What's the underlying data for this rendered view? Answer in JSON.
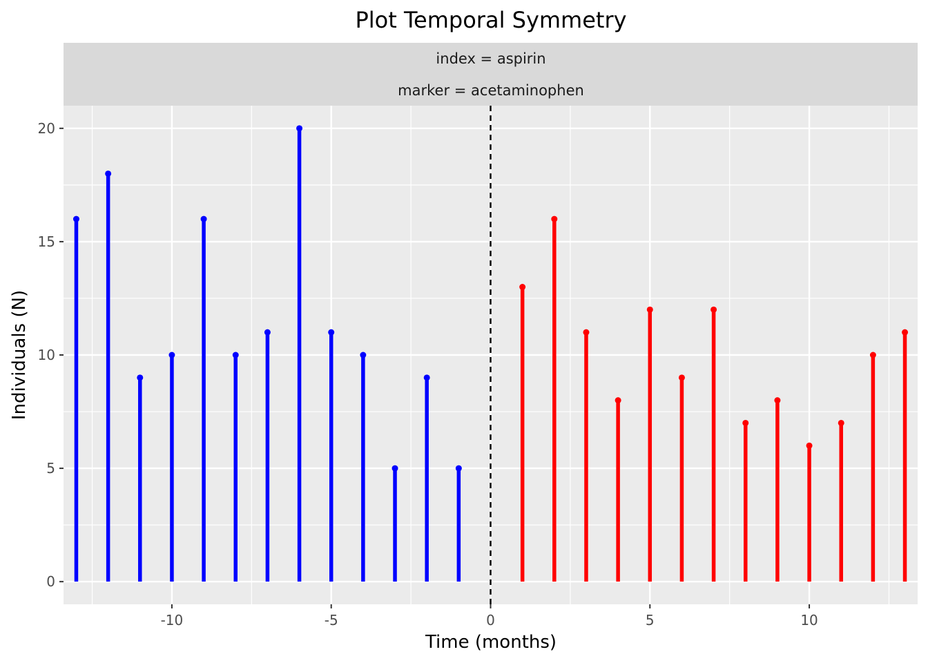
{
  "chart_data": {
    "type": "bar",
    "title": "Plot Temporal Symmetry",
    "facet_labels": [
      "index = aspirin",
      "marker = acetaminophen"
    ],
    "xlabel": "Time (months)",
    "ylabel": "Individuals (N)",
    "xlim": [
      -13.4,
      13.4
    ],
    "ylim": [
      -1,
      21
    ],
    "x_ticks": [
      -10,
      -5,
      0,
      5,
      10
    ],
    "x_tick_labels": [
      "-10",
      "-5",
      "0",
      "5",
      "10"
    ],
    "y_ticks": [
      0,
      5,
      10,
      15,
      20
    ],
    "y_tick_labels": [
      "0",
      "5",
      "10",
      "15",
      "20"
    ],
    "grid": true,
    "reference_line": {
      "x": 0,
      "style": "dashed"
    },
    "series": [
      {
        "color": "#0000ff",
        "x": [
          -13,
          -12,
          -11,
          -10,
          -9,
          -8,
          -7,
          -6,
          -5,
          -4,
          -3,
          -2,
          -1
        ],
        "values": [
          16,
          18,
          9,
          10,
          16,
          10,
          11,
          20,
          11,
          10,
          5,
          9,
          5
        ]
      },
      {
        "color": "#ff0000",
        "x": [
          1,
          2,
          3,
          4,
          5,
          6,
          7,
          8,
          9,
          10,
          11,
          12,
          13
        ],
        "values": [
          13,
          16,
          11,
          8,
          12,
          9,
          12,
          7,
          8,
          6,
          7,
          10,
          11
        ]
      }
    ]
  }
}
